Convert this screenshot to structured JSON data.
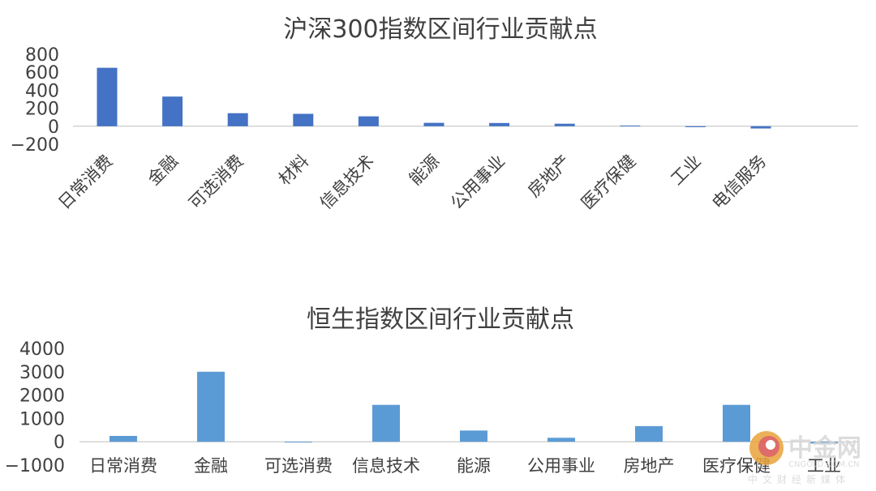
{
  "chart_data": [
    {
      "type": "bar",
      "title": "沪深300指数区间行业贡献点",
      "categories": [
        "日常消费",
        "金融",
        "可选消费",
        "材料",
        "信息技术",
        "能源",
        "公用事业",
        "房地产",
        "医疗保健",
        "工业",
        "电信服务"
      ],
      "values": [
        650,
        330,
        145,
        138,
        110,
        38,
        36,
        28,
        8,
        -10,
        -25
      ],
      "ylim": [
        -200,
        800
      ],
      "yticks": [
        800,
        600,
        400,
        200,
        0,
        -200
      ],
      "ytick_labels": [
        "800",
        "600",
        "400",
        "200",
        "0",
        "−200"
      ],
      "bar_color": "#4472c4",
      "xlabel_rotation": -45,
      "grid": false,
      "legend": "none"
    },
    {
      "type": "bar",
      "title": "恒生指数区间行业贡献点",
      "categories": [
        "日常消费",
        "金融",
        "可选消费",
        "信息技术",
        "能源",
        "公用事业",
        "房地产",
        "医疗保健",
        "工业"
      ],
      "values": [
        250,
        3000,
        -30,
        1580,
        480,
        170,
        670,
        1580,
        -80
      ],
      "ylim": [
        -1000,
        4000
      ],
      "yticks": [
        4000,
        3000,
        2000,
        1000,
        0,
        -1000
      ],
      "ytick_labels": [
        "4000",
        "3000",
        "2000",
        "1000",
        "0",
        "−1000"
      ],
      "bar_color": "#5b9bd5",
      "xlabel_rotation": 0,
      "grid": false,
      "legend": "none"
    }
  ],
  "watermark": {
    "name": "中金网",
    "url": "CNGOLD.COM.CN",
    "subtitle": "中文财经新媒体",
    "logo_colors": [
      "#e8a33c",
      "#d9534f"
    ]
  }
}
